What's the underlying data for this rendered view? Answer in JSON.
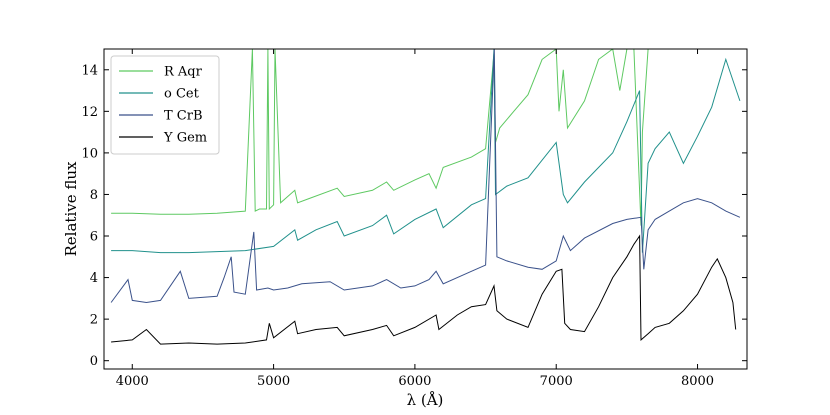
{
  "chart_data": {
    "type": "line",
    "title": "",
    "xlabel": "λ (Å)",
    "ylabel": "Relative flux",
    "xlim": [
      3800,
      8350
    ],
    "ylim": [
      -0.4,
      15
    ],
    "xticks": [
      4000,
      5000,
      6000,
      7000,
      8000
    ],
    "yticks": [
      0,
      2,
      4,
      6,
      8,
      10,
      12,
      14
    ],
    "grid": false,
    "legend_position": "top-left",
    "series": [
      {
        "name": "R Aqr",
        "color": "#5ec962",
        "x": [
          3850,
          4000,
          4200,
          4400,
          4600,
          4800,
          4850,
          4870,
          4900,
          4950,
          4960,
          4970,
          5000,
          5010,
          5050,
          5150,
          5170,
          5250,
          5450,
          5500,
          5700,
          5800,
          5850,
          6000,
          6100,
          6150,
          6200,
          6400,
          6500,
          6560,
          6570,
          6600,
          6700,
          6800,
          6900,
          7000,
          7020,
          7050,
          7080,
          7200,
          7300,
          7400,
          7450,
          7500,
          7550,
          7600,
          7610,
          7650,
          7700,
          7800,
          7900,
          8000,
          8100,
          8200,
          8300
        ],
        "y": [
          7.1,
          7.1,
          7.05,
          7.05,
          7.1,
          7.2,
          15,
          7.2,
          7.3,
          7.3,
          15,
          7.3,
          7.5,
          15,
          7.6,
          8.2,
          7.6,
          7.8,
          8.3,
          7.9,
          8.2,
          8.6,
          8.2,
          8.7,
          9.0,
          8.3,
          9.3,
          9.8,
          10.2,
          14.8,
          10.5,
          11.2,
          12.0,
          12.8,
          14.5,
          15,
          12.0,
          14.0,
          11.2,
          12.5,
          14.5,
          15,
          13.0,
          15,
          15,
          6.5,
          11.0,
          15,
          15,
          15,
          15,
          15,
          15,
          15,
          15
        ]
      },
      {
        "name": "o Cet",
        "color": "#21918c",
        "x": [
          3850,
          4000,
          4200,
          4400,
          4600,
          4800,
          5000,
          5150,
          5170,
          5300,
          5450,
          5500,
          5700,
          5800,
          5850,
          6000,
          6150,
          6200,
          6400,
          6500,
          6560,
          6570,
          6650,
          6800,
          7000,
          7050,
          7080,
          7200,
          7400,
          7500,
          7590,
          7610,
          7650,
          7700,
          7800,
          7900,
          8000,
          8100,
          8200,
          8300
        ],
        "y": [
          5.3,
          5.3,
          5.2,
          5.2,
          5.25,
          5.3,
          5.5,
          6.3,
          5.8,
          6.3,
          6.7,
          6.0,
          6.5,
          7.0,
          6.1,
          6.8,
          7.3,
          6.4,
          7.5,
          7.8,
          15,
          8.0,
          8.4,
          8.8,
          10.5,
          8.0,
          7.6,
          8.6,
          10.0,
          11.5,
          13.0,
          5.2,
          9.5,
          10.2,
          11.0,
          9.5,
          10.8,
          12.2,
          14.5,
          12.5
        ]
      },
      {
        "name": "T CrB",
        "color": "#3b528b",
        "x": [
          3850,
          3970,
          4000,
          4100,
          4200,
          4340,
          4400,
          4600,
          4650,
          4700,
          4720,
          4800,
          4860,
          4880,
          4960,
          5000,
          5100,
          5200,
          5400,
          5500,
          5700,
          5800,
          5900,
          6000,
          6100,
          6150,
          6200,
          6400,
          6500,
          6562,
          6580,
          6650,
          6800,
          6900,
          7000,
          7050,
          7100,
          7200,
          7400,
          7500,
          7600,
          7620,
          7650,
          7700,
          7800,
          7900,
          8000,
          8100,
          8200,
          8300
        ],
        "y": [
          2.8,
          3.9,
          2.9,
          2.8,
          2.9,
          4.3,
          3.0,
          3.1,
          4.0,
          5.0,
          3.3,
          3.2,
          6.2,
          3.4,
          3.5,
          3.4,
          3.5,
          3.7,
          3.8,
          3.4,
          3.6,
          3.9,
          3.5,
          3.6,
          3.9,
          4.3,
          3.7,
          4.3,
          4.6,
          15,
          5.0,
          4.8,
          4.5,
          4.4,
          4.8,
          6.0,
          5.3,
          5.9,
          6.6,
          6.8,
          6.9,
          4.4,
          6.3,
          6.8,
          7.2,
          7.6,
          7.8,
          7.6,
          7.2,
          6.9
        ]
      },
      {
        "name": "Y Gem",
        "color": "#000000",
        "x": [
          3850,
          4000,
          4100,
          4200,
          4400,
          4600,
          4800,
          4950,
          4970,
          5000,
          5150,
          5170,
          5300,
          5450,
          5500,
          5700,
          5800,
          5850,
          6000,
          6150,
          6170,
          6300,
          6400,
          6500,
          6560,
          6580,
          6650,
          6800,
          6900,
          7000,
          7040,
          7060,
          7100,
          7200,
          7300,
          7400,
          7500,
          7550,
          7590,
          7600,
          7650,
          7700,
          7800,
          7900,
          8000,
          8100,
          8140,
          8200,
          8250,
          8270
        ],
        "y": [
          0.9,
          1.0,
          1.5,
          0.8,
          0.85,
          0.8,
          0.85,
          1.0,
          1.8,
          1.1,
          1.9,
          1.3,
          1.5,
          1.6,
          1.2,
          1.5,
          1.7,
          1.2,
          1.6,
          2.2,
          1.5,
          2.2,
          2.6,
          2.7,
          3.6,
          2.4,
          2.0,
          1.6,
          3.2,
          4.3,
          4.4,
          1.8,
          1.5,
          1.4,
          2.6,
          4.0,
          5.0,
          5.6,
          6.0,
          1.0,
          1.3,
          1.6,
          1.8,
          2.4,
          3.2,
          4.5,
          4.9,
          4.0,
          2.8,
          1.5
        ]
      }
    ]
  }
}
